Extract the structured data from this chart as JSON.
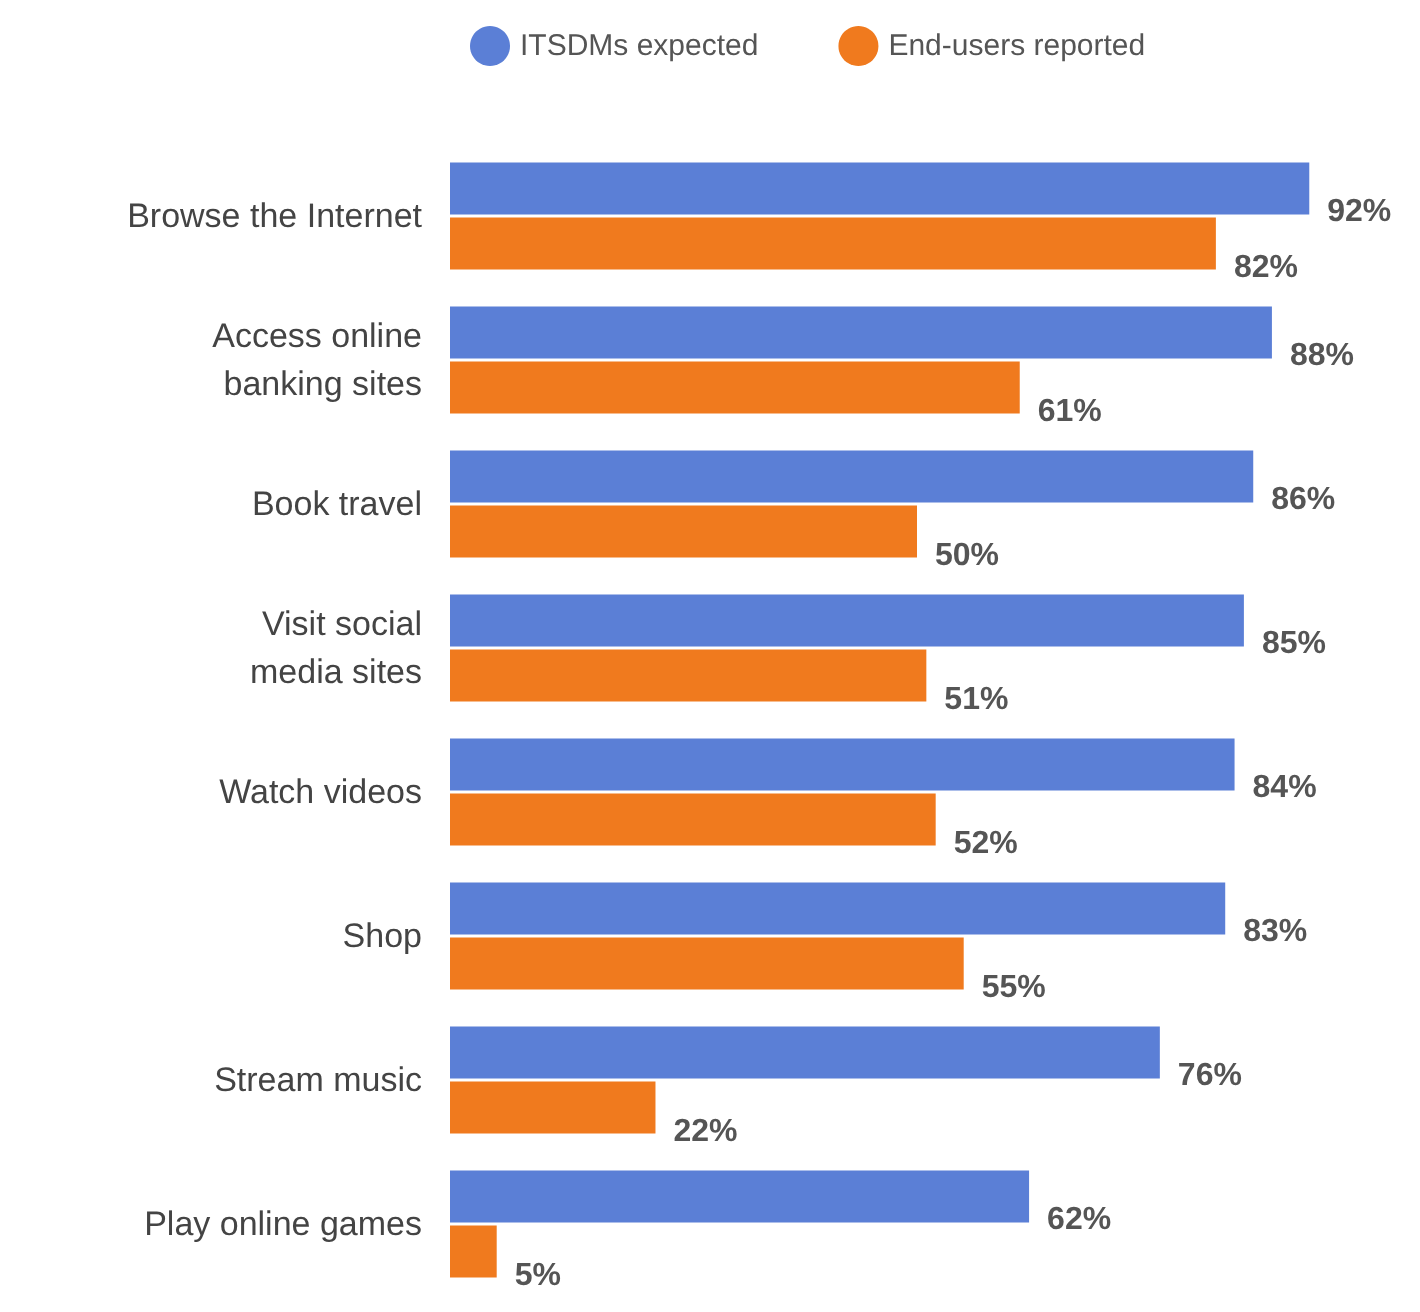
{
  "chart_data": {
    "type": "bar",
    "orientation": "horizontal",
    "legend": "top",
    "categories": [
      "Browse the Internet",
      "Access online\nbanking sites",
      "Book travel",
      "Visit social\nmedia sites",
      "Watch videos",
      "Shop",
      "Stream music",
      "Play online games"
    ],
    "series": [
      {
        "name": "ITSDMs expected",
        "color": "#5b7fd6",
        "values": [
          92,
          88,
          86,
          85,
          84,
          83,
          76,
          62
        ],
        "value_labels": [
          "92%",
          "88%",
          "86%",
          "85%",
          "84%",
          "83%",
          "76%",
          "62%"
        ]
      },
      {
        "name": "End-users reported",
        "color": "#f07a1e",
        "values": [
          82,
          61,
          50,
          51,
          52,
          55,
          22,
          5
        ],
        "value_labels": [
          "82%",
          "61%",
          "50%",
          "51%",
          "52%",
          "55%",
          "22%",
          "5%"
        ]
      }
    ]
  }
}
